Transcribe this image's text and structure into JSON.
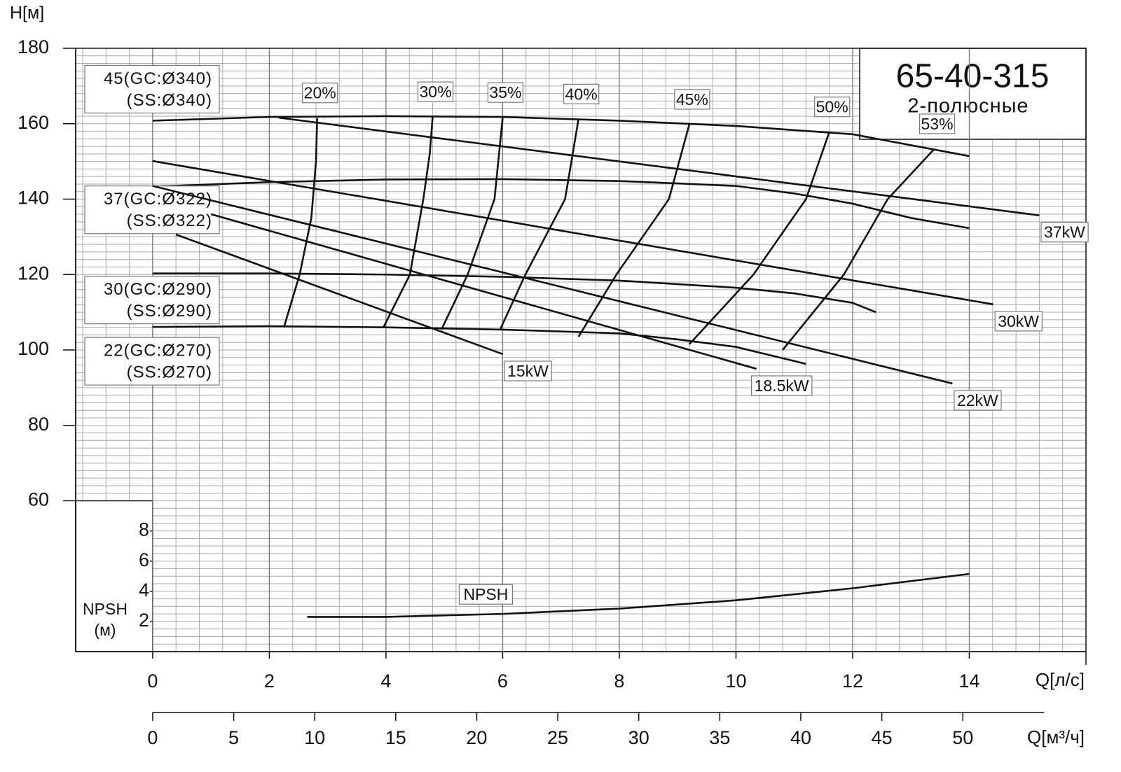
{
  "chart_data": {
    "type": "line",
    "title": "65-40-315",
    "subtitle": "2-полюсные",
    "ylabel": "H[м]",
    "xlabel": "Q[л/с]",
    "x2label": "Q[м³/ч]",
    "y2label": "NPSH",
    "y2unit": "(м)",
    "xlim": [
      -1.32,
      16
    ],
    "xticks": [
      0,
      2,
      4,
      6,
      8,
      10,
      12,
      14
    ],
    "x2lim": [
      -4.752,
      57.6
    ],
    "x2ticks": [
      0,
      5,
      10,
      15,
      20,
      25,
      30,
      35,
      40,
      45,
      50
    ],
    "ylim": [
      20,
      180
    ],
    "yticks": [
      60,
      80,
      100,
      120,
      140,
      160,
      180
    ],
    "y2lim": [
      0,
      40
    ],
    "y2ticks": [
      2,
      4,
      6,
      8
    ],
    "grid": true,
    "series": [
      {
        "name": "45(GC:Ø340)",
        "name_line2": "(SS:Ø340)",
        "group": "head",
        "color": "#111",
        "x": [
          0,
          2,
          4,
          6,
          8,
          10,
          12,
          14
        ],
        "values": [
          160.8,
          161.8,
          162.0,
          161.8,
          160.8,
          159.4,
          157.2,
          151.4
        ]
      },
      {
        "name": "37(GC:Ø322)",
        "name_line2": "(SS:Ø322)",
        "group": "head",
        "color": "#111",
        "x": [
          0,
          2,
          4,
          6,
          8,
          10,
          11,
          12,
          13,
          14
        ],
        "values": [
          143.3,
          144.5,
          145.2,
          145.3,
          144.8,
          143.5,
          141.5,
          138.8,
          135,
          132.3
        ]
      },
      {
        "name": "30(GC:Ø290)",
        "name_line2": "(SS:Ø290)",
        "group": "head",
        "color": "#111",
        "x": [
          0,
          2,
          4,
          6,
          8,
          10,
          11,
          12,
          12.4
        ],
        "values": [
          120.3,
          120.3,
          120,
          119.4,
          118.4,
          116.5,
          115,
          112.5,
          110
        ]
      },
      {
        "name": "22(GC:Ø270)",
        "name_line2": "(SS:Ø270)",
        "group": "head",
        "color": "#111",
        "x": [
          0,
          2,
          4,
          6,
          8,
          9,
          10,
          11.2
        ],
        "values": [
          106.1,
          106.3,
          106,
          105.4,
          104.4,
          102.8,
          100.8,
          96.3
        ]
      },
      {
        "name": "20%",
        "group": "efficiency",
        "color": "#111",
        "x": [
          2.25,
          2.52,
          2.72,
          2.8,
          2.82
        ],
        "values": [
          106,
          120,
          135,
          150,
          161.5
        ]
      },
      {
        "name": "30%",
        "group": "efficiency",
        "color": "#111",
        "x": [
          3.95,
          4.41,
          4.64,
          4.75,
          4.8
        ],
        "values": [
          105.8,
          120,
          140,
          152,
          161.8
        ]
      },
      {
        "name": "35%",
        "group": "efficiency",
        "color": "#111",
        "x": [
          4.95,
          5.4,
          5.86,
          6.0
        ],
        "values": [
          105.4,
          120,
          140,
          161.6
        ]
      },
      {
        "name": "40%",
        "group": "efficiency",
        "color": "#111",
        "x": [
          5.95,
          6.39,
          7.07,
          7.3
        ],
        "values": [
          105.2,
          120,
          140,
          161.2
        ]
      },
      {
        "name": "45%",
        "group": "efficiency",
        "color": "#111",
        "x": [
          7.3,
          7.95,
          8.85,
          9.2
        ],
        "values": [
          103.5,
          120,
          140,
          159.8
        ]
      },
      {
        "name": "50%",
        "group": "efficiency",
        "color": "#111",
        "x": [
          9.2,
          10.3,
          11.2,
          11.6
        ],
        "values": [
          101.5,
          120,
          140,
          157.8
        ]
      },
      {
        "name": "53%",
        "group": "efficiency",
        "color": "#111",
        "x": [
          10.8,
          11.85,
          12.6,
          13.4
        ],
        "values": [
          100,
          120,
          140,
          153.3
        ]
      },
      {
        "name": "37kW",
        "group": "power",
        "color": "#111",
        "x": [
          2.16,
          15.2
        ],
        "values": [
          161.6,
          135.7
        ]
      },
      {
        "name": "30kW",
        "group": "power",
        "color": "#111",
        "x": [
          0,
          14.41
        ],
        "values": [
          150.1,
          112.1
        ]
      },
      {
        "name": "22kW",
        "group": "power",
        "color": "#111",
        "x": [
          0,
          13.71
        ],
        "values": [
          143.5,
          91.1
        ]
      },
      {
        "name": "18.5kW",
        "group": "power",
        "color": "#111",
        "x": [
          1.0,
          10.35
        ],
        "values": [
          136,
          95.0
        ]
      },
      {
        "name": "15kW",
        "group": "power",
        "color": "#111",
        "x": [
          0.4,
          6.0
        ],
        "values": [
          130.6,
          98.9
        ]
      },
      {
        "name": "NPSH",
        "group": "npsh",
        "axis": "y2",
        "color": "#111",
        "x": [
          2.65,
          4,
          6,
          8,
          10,
          12,
          14
        ],
        "values": [
          2.3,
          2.3,
          2.5,
          2.85,
          3.4,
          4.2,
          5.15
        ]
      }
    ]
  }
}
